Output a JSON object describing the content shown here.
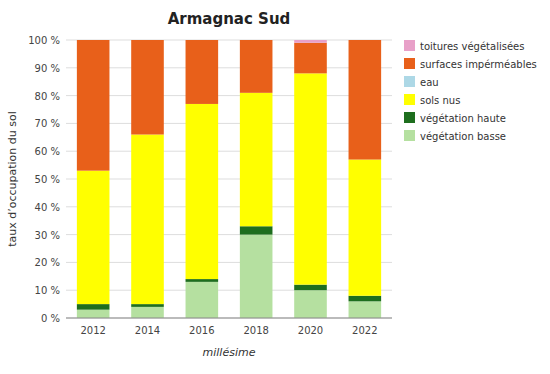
{
  "chart_data": {
    "type": "bar",
    "stacked": true,
    "title": "Armagnac Sud",
    "x_label": "millésime",
    "y_label": "taux d’occupation du sol",
    "categories": [
      "2012",
      "2014",
      "2016",
      "2018",
      "2020",
      "2022"
    ],
    "series": [
      {
        "name": "végétation basse",
        "color": "#b5e0a0",
        "values": [
          3,
          4,
          13,
          30,
          10,
          6
        ]
      },
      {
        "name": "végétation haute",
        "color": "#1e6e1e",
        "values": [
          2,
          1,
          1,
          3,
          2,
          2
        ]
      },
      {
        "name": "sols nus",
        "color": "#ffff00",
        "values": [
          48,
          61,
          63,
          48,
          76,
          49
        ]
      },
      {
        "name": "eau",
        "color": "#add8e6",
        "values": [
          0,
          0,
          0,
          0,
          0,
          0
        ]
      },
      {
        "name": "surfaces impérméables",
        "color": "#e8601a",
        "values": [
          47,
          34,
          23,
          19,
          11,
          43
        ]
      },
      {
        "name": "toitures végétalisées",
        "color": "#e8a0c8",
        "values": [
          0,
          0,
          0,
          0,
          1,
          0
        ]
      }
    ],
    "ylim": [
      0,
      100
    ],
    "yticks": [
      {
        "value": 0,
        "label": "0 %"
      },
      {
        "value": 10,
        "label": "10 %"
      },
      {
        "value": 20,
        "label": "20 %"
      },
      {
        "value": 30,
        "label": "30 %"
      },
      {
        "value": 40,
        "label": "40 %"
      },
      {
        "value": 50,
        "label": "50 %"
      },
      {
        "value": 60,
        "label": "60 %"
      },
      {
        "value": 70,
        "label": "70 %"
      },
      {
        "value": 80,
        "label": "80 %"
      },
      {
        "value": 90,
        "label": "90 %"
      },
      {
        "value": 100,
        "label": "100 %"
      }
    ],
    "grid": true,
    "legend": "right"
  }
}
